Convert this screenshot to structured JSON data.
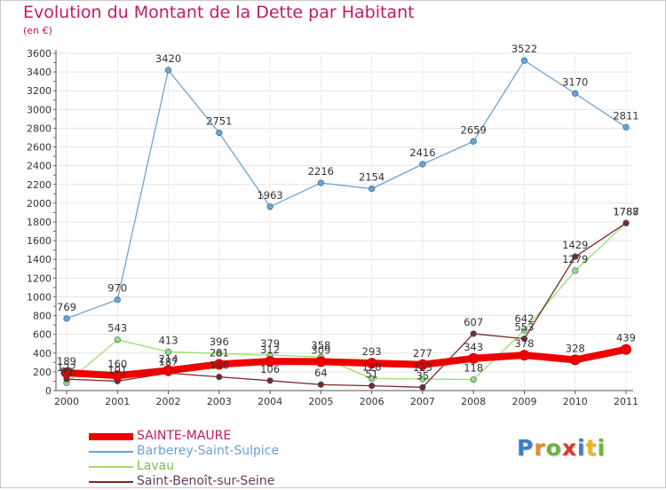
{
  "header": {
    "title": "Evolution du Montant de la Dette par Habitant",
    "subtitle": "(en €)"
  },
  "logo": {
    "text": "Proxiti",
    "letters": [
      {
        "ch": "P",
        "color": "#3c7fc2"
      },
      {
        "ch": "r",
        "color": "#e8872a"
      },
      {
        "ch": "o",
        "color": "#6db33f"
      },
      {
        "ch": "x",
        "color": "#d63b2f"
      },
      {
        "ch": "i",
        "color": "#3c7fc2"
      },
      {
        "ch": "t",
        "color": "#e8b52a"
      },
      {
        "ch": "i",
        "color": "#6db33f"
      }
    ]
  },
  "chart_data": {
    "type": "line",
    "x": [
      "2000",
      "2001",
      "2002",
      "2003",
      "2004",
      "2005",
      "2006",
      "2007",
      "2008",
      "2009",
      "2010",
      "2011"
    ],
    "ylim": [
      0,
      3600
    ],
    "yticks": [
      0,
      200,
      400,
      600,
      800,
      1000,
      1200,
      1400,
      1600,
      1800,
      2000,
      2200,
      2400,
      2600,
      2800,
      3000,
      3200,
      3400,
      3600
    ],
    "grid": true,
    "legend_position": "bottom-left",
    "series": [
      {
        "name": "SAINTE-MAURE",
        "color": "#ee0000",
        "values": [
          189,
          160,
          214,
          281,
          312,
          309,
          293,
          277,
          343,
          378,
          328,
          439
        ]
      },
      {
        "name": "Barberey-Saint-Sulpice",
        "color": "#6aa3d6",
        "values": [
          769,
          970,
          3420,
          2751,
          1963,
          2216,
          2154,
          2416,
          2659,
          3522,
          3170,
          2811
        ]
      },
      {
        "name": "Lavau",
        "color": "#98e06a",
        "values": [
          82,
          543,
          413,
          396,
          379,
          358,
          128,
          123,
          118,
          642,
          1279,
          1787
        ]
      },
      {
        "name": "Saint-Benoît-sur-Seine",
        "color": "#7a2a2a",
        "values": [
          122,
          101,
          187,
          146,
          106,
          64,
          51,
          35,
          607,
          553,
          1429,
          1788
        ]
      }
    ]
  }
}
